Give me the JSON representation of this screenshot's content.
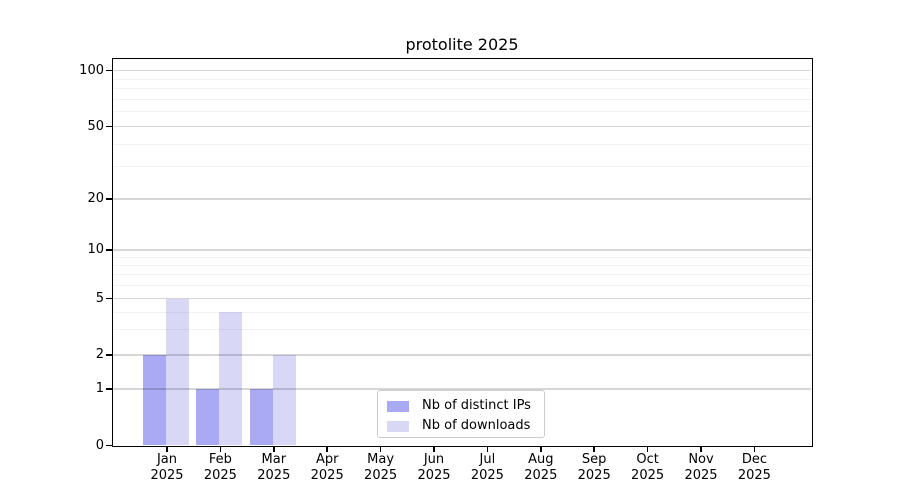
{
  "chart_data": {
    "type": "bar",
    "title": "protolite 2025",
    "categories": [
      "Jan",
      "Feb",
      "Mar",
      "Apr",
      "May",
      "Jun",
      "Jul",
      "Aug",
      "Sep",
      "Oct",
      "Nov",
      "Dec"
    ],
    "x_tick_year": "2025",
    "series": [
      {
        "name": "Nb of distinct IPs",
        "color": "#a9a9f4",
        "values": [
          2,
          1,
          1,
          0,
          0,
          0,
          0,
          0,
          0,
          0,
          0,
          0
        ]
      },
      {
        "name": "Nb of downloads",
        "color": "#d8d8f6",
        "values": [
          5,
          4,
          2,
          0,
          0,
          0,
          0,
          0,
          0,
          0,
          0,
          0
        ]
      }
    ],
    "y_axis": {
      "scale": "log",
      "ticks": [
        0,
        1,
        2,
        5,
        10,
        20,
        50,
        100
      ],
      "tick_labels": [
        "0",
        "1",
        "2",
        "5",
        "10",
        "20",
        "50",
        "100"
      ],
      "minor_gridlines": [
        3,
        4,
        6,
        7,
        8,
        9,
        30,
        40,
        60,
        70,
        80,
        90
      ],
      "range": [
        0,
        115
      ]
    },
    "xlabel": "",
    "ylabel": "",
    "grid": true,
    "legend_position": "lower center",
    "background_color": "#ffffff"
  }
}
